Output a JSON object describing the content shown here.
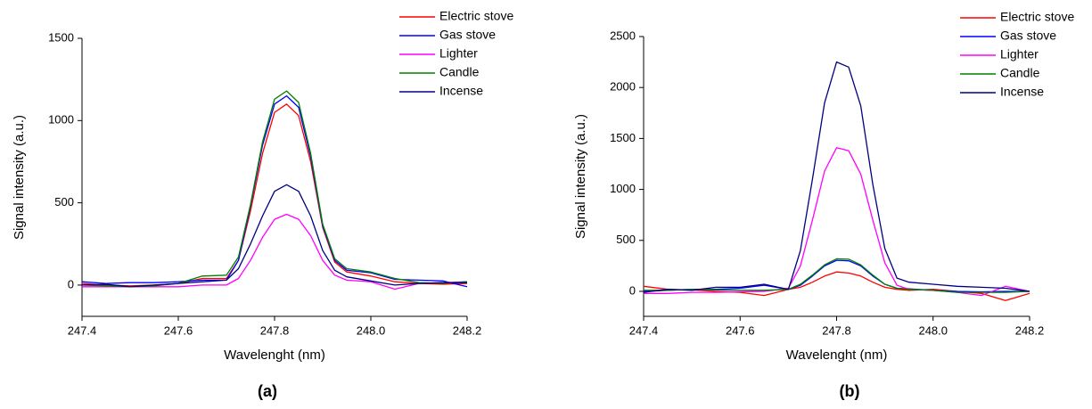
{
  "chart_data": [
    {
      "type": "line",
      "panel_label": "(a)",
      "x_label": "Wavelenght (nm)",
      "y_label": "Signal intensity (a.u.)",
      "x": [
        247.4,
        247.45,
        247.5,
        247.55,
        247.6,
        247.65,
        247.7,
        247.725,
        247.75,
        247.775,
        247.8,
        247.825,
        247.85,
        247.875,
        247.9,
        247.925,
        247.95,
        248.0,
        248.05,
        248.1,
        248.15,
        248.2
      ],
      "series": [
        {
          "name": "Electric stove",
          "color": "#ff0000",
          "values": [
            10,
            0,
            -5,
            0,
            10,
            40,
            40,
            150,
            450,
            800,
            1050,
            1100,
            1030,
            750,
            350,
            140,
            80,
            55,
            20,
            10,
            5,
            10
          ]
        },
        {
          "name": "Gas stove",
          "color": "#0000ff",
          "values": [
            20,
            10,
            15,
            15,
            20,
            30,
            30,
            150,
            480,
            850,
            1100,
            1150,
            1080,
            780,
            360,
            150,
            90,
            75,
            35,
            30,
            25,
            -10
          ]
        },
        {
          "name": "Lighter",
          "color": "#ff00ff",
          "values": [
            -10,
            -10,
            -10,
            -10,
            -10,
            0,
            0,
            40,
            150,
            290,
            400,
            430,
            400,
            300,
            150,
            60,
            30,
            20,
            -25,
            10,
            15,
            20
          ]
        },
        {
          "name": "Candle",
          "color": "#008000",
          "values": [
            0,
            -5,
            -10,
            -5,
            10,
            55,
            60,
            170,
            490,
            870,
            1130,
            1180,
            1110,
            800,
            370,
            160,
            100,
            80,
            40,
            15,
            10,
            20
          ]
        },
        {
          "name": "Incense",
          "color": "#000080",
          "values": [
            0,
            5,
            -10,
            0,
            10,
            20,
            30,
            100,
            250,
            420,
            570,
            610,
            570,
            420,
            210,
            90,
            50,
            25,
            0,
            10,
            15,
            15
          ]
        }
      ],
      "xlim": [
        247.4,
        248.2
      ],
      "xticks": [
        247.4,
        247.6,
        247.8,
        {
          "value": 248,
          "label": "248.0"
        },
        248.2
      ],
      "ylim": [
        -190,
        1500
      ],
      "yticks": [
        0,
        500,
        1000,
        1500
      ],
      "legend": "top right"
    },
    {
      "type": "line",
      "panel_label": "(b)",
      "x_label": "Wavelenght (nm)",
      "y_label": "Signal intensity (a.u.)",
      "x": [
        247.4,
        247.45,
        247.5,
        247.55,
        247.6,
        247.65,
        247.7,
        247.725,
        247.75,
        247.775,
        247.8,
        247.825,
        247.85,
        247.875,
        247.9,
        247.925,
        247.95,
        248.0,
        248.05,
        248.1,
        248.15,
        248.2
      ],
      "series": [
        {
          "name": "Electric stove",
          "color": "#ff0000",
          "values": [
            50,
            20,
            15,
            0,
            -10,
            -40,
            20,
            40,
            90,
            150,
            190,
            180,
            150,
            90,
            40,
            20,
            10,
            20,
            0,
            -20,
            -90,
            -20
          ]
        },
        {
          "name": "Gas stove",
          "color": "#0000ff",
          "values": [
            0,
            10,
            20,
            20,
            30,
            60,
            20,
            60,
            150,
            250,
            305,
            300,
            250,
            150,
            70,
            30,
            25,
            10,
            0,
            -5,
            0,
            0
          ]
        },
        {
          "name": "Lighter",
          "color": "#ff00ff",
          "values": [
            -20,
            -20,
            -10,
            -10,
            -5,
            0,
            30,
            250,
            700,
            1180,
            1410,
            1380,
            1150,
            700,
            280,
            60,
            20,
            10,
            -10,
            -40,
            50,
            0
          ]
        },
        {
          "name": "Candle",
          "color": "#008000",
          "values": [
            10,
            10,
            20,
            15,
            10,
            10,
            20,
            70,
            160,
            260,
            320,
            315,
            260,
            160,
            70,
            30,
            20,
            10,
            -10,
            -10,
            -10,
            0
          ]
        },
        {
          "name": "Incense",
          "color": "#000080",
          "values": [
            -10,
            20,
            10,
            40,
            40,
            70,
            20,
            400,
            1100,
            1850,
            2250,
            2200,
            1820,
            1050,
            420,
            130,
            90,
            70,
            50,
            40,
            30,
            0
          ]
        }
      ],
      "xlim": [
        247.4,
        248.2
      ],
      "xticks": [
        247.4,
        247.6,
        247.8,
        {
          "value": 248,
          "label": "248.0"
        },
        248.2
      ],
      "ylim": [
        -245,
        2500
      ],
      "yticks": [
        0,
        500,
        1000,
        1500,
        2000,
        2500
      ],
      "legend": "top right"
    }
  ]
}
